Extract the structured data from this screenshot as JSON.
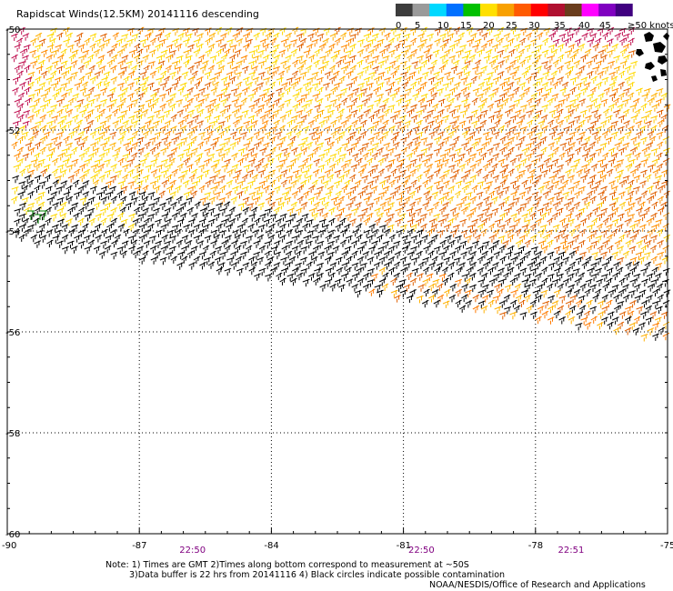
{
  "title": "Rapidscat Winds(12.5KM) 20141116 descending",
  "colors": {
    "background": "#ffffff",
    "grid": "#000000",
    "land": "#000000",
    "time_label": "#800080"
  },
  "scale": {
    "ticks": [
      "0",
      "5",
      "10",
      "15",
      "20",
      "25",
      "30",
      "35",
      "40",
      "45",
      "≥50 knots"
    ],
    "colors": [
      "#3c3c3c",
      "#9a9a9a",
      "#00d8ff",
      "#0070ff",
      "#00c000",
      "#ffe000",
      "#f8a000",
      "#ff5a00",
      "#ff0000",
      "#b01030",
      "#6a3c1c",
      "#ff00ff",
      "#8000c0",
      "#400080"
    ]
  },
  "chart_data": {
    "type": "wind barb map",
    "x_ticks": [
      -90,
      -87,
      -84,
      -81,
      -78,
      -75
    ],
    "x_tick_labels": [
      "-90",
      "-87",
      "-84",
      "-81",
      "-78",
      "-75"
    ],
    "y_ticks": [
      -50,
      -52,
      -54,
      -56,
      -58,
      -60
    ],
    "y_tick_labels": [
      "-50",
      "-52",
      "-54",
      "-56",
      "-58",
      "-60"
    ],
    "xlim": [
      -90,
      -75
    ],
    "ylim": [
      -60,
      -50
    ],
    "grid": true,
    "time_labels": [
      {
        "lon": -85.8,
        "text": "22:50"
      },
      {
        "lon": -80.6,
        "text": "22:50"
      },
      {
        "lon": -77.2,
        "text": "22:51"
      }
    ]
  },
  "notes": {
    "line1": "Note: 1) Times are GMT 2)Times along bottom correspond to measurement at ~50S",
    "line2": "3)Data buffer is 22 hrs from 20141116 4) Black circles indicate possible contamination",
    "credit": "NOAA/NESDIS/Office of Research and Applications"
  }
}
